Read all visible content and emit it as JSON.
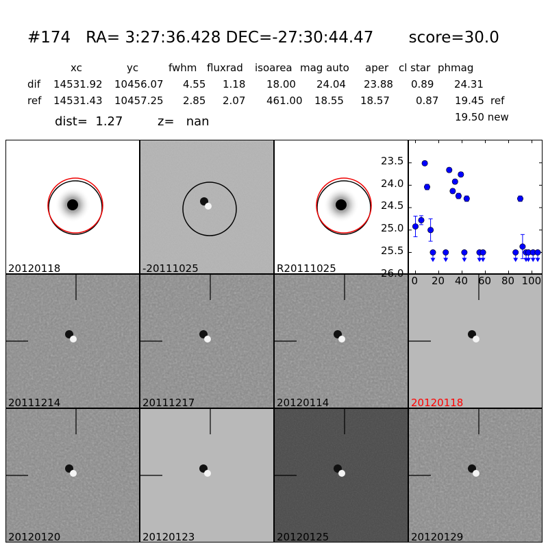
{
  "title": "#174   RA= 3:27:36.428 DEC=-27:30:44.47       score=30.0",
  "table": {
    "headers": [
      "xc",
      "yc",
      "fwhm",
      "fluxrad",
      "isoarea",
      "mag auto",
      "aper",
      "cl star",
      "phmag"
    ],
    "rows": [
      {
        "label": "dif",
        "values": [
          "14531.92",
          "10456.07",
          "4.55",
          "1.18",
          "18.00",
          "24.04",
          "23.88",
          "0.89",
          "24.31"
        ],
        "suffix": ""
      },
      {
        "label": "ref",
        "values": [
          "14531.43",
          "10457.25",
          "2.85",
          "2.07",
          "461.00",
          "18.55",
          "18.57",
          "0.87",
          "19.45"
        ],
        "suffix": "ref"
      }
    ],
    "new_mag": "19.50 new",
    "dist": "dist=  1.27",
    "z": "z=   nan"
  },
  "stamps": [
    {
      "label": "20120118",
      "type": "star",
      "label_color": "#000000"
    },
    {
      "label": "-20111025",
      "type": "diff",
      "label_color": "#000000"
    },
    {
      "label": "R20111025",
      "type": "star",
      "label_color": "#000000"
    },
    {
      "label": "20111214",
      "type": "noise",
      "label_color": "#000000"
    },
    {
      "label": "20111217",
      "type": "noise",
      "label_color": "#000000"
    },
    {
      "label": "20120114",
      "type": "noise",
      "label_color": "#000000"
    },
    {
      "label": "20120118",
      "type": "clean",
      "label_color": "#ff0000"
    },
    {
      "label": "20120120",
      "type": "noise",
      "label_color": "#000000"
    },
    {
      "label": "20120123",
      "type": "clean",
      "label_color": "#000000"
    },
    {
      "label": "20120125",
      "type": "dark",
      "label_color": "#000000"
    },
    {
      "label": "20120129",
      "type": "noise",
      "label_color": "#000000"
    }
  ],
  "chart_data": {
    "type": "scatter",
    "xlim": [
      -5,
      110
    ],
    "ylim": [
      26.0,
      23.0
    ],
    "y_inverted": true,
    "xticks": [
      "0",
      "20",
      "40",
      "60",
      "80",
      "100"
    ],
    "yticks": [
      "23.5",
      "24.0",
      "24.5",
      "25.0",
      "25.5",
      "26.0"
    ],
    "marker_color": "#0000ff",
    "detections": [
      {
        "x": 0,
        "y": 24.92,
        "err": 0.23
      },
      {
        "x": 5,
        "y": 24.78,
        "err": 0.1
      },
      {
        "x": 8,
        "y": 23.51,
        "err": 0.04
      },
      {
        "x": 10,
        "y": 24.04,
        "err": 0.06
      },
      {
        "x": 13,
        "y": 25.0,
        "err": 0.25
      },
      {
        "x": 29,
        "y": 23.66,
        "err": 0.05
      },
      {
        "x": 32,
        "y": 24.13,
        "err": 0.05
      },
      {
        "x": 34,
        "y": 23.92,
        "err": 0.05
      },
      {
        "x": 37,
        "y": 24.24,
        "err": 0.06
      },
      {
        "x": 39,
        "y": 23.76,
        "err": 0.05
      },
      {
        "x": 44,
        "y": 24.3,
        "err": 0.06
      },
      {
        "x": 90,
        "y": 24.3,
        "err": 0.06
      },
      {
        "x": 92,
        "y": 25.37,
        "err": 0.27
      }
    ],
    "upper_limits": [
      {
        "x": 15,
        "y": 25.5
      },
      {
        "x": 26,
        "y": 25.5
      },
      {
        "x": 42,
        "y": 25.5
      },
      {
        "x": 55,
        "y": 25.5
      },
      {
        "x": 58,
        "y": 25.5
      },
      {
        "x": 86,
        "y": 25.5
      },
      {
        "x": 95,
        "y": 25.5
      },
      {
        "x": 97,
        "y": 25.5
      },
      {
        "x": 101,
        "y": 25.5
      },
      {
        "x": 105,
        "y": 25.5
      }
    ]
  }
}
